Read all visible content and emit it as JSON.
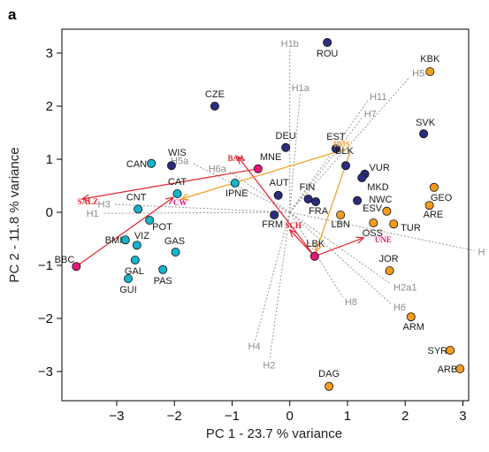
{
  "chart_data": {
    "type": "scatter",
    "panel_letter": "a",
    "title": "",
    "xlabel": "PC 1 -  23.7 % variance",
    "ylabel": "PC 2 - 11.8 % variance",
    "xlim": [
      -3.95,
      3.1
    ],
    "ylim": [
      -3.55,
      3.45
    ],
    "x_ticks": [
      -3,
      -2,
      -1,
      0,
      1,
      2,
      3
    ],
    "y_ticks": [
      -3,
      -2,
      -1,
      0,
      1,
      2,
      3
    ],
    "x_tick_labels": [
      "−3",
      "−2",
      "−1",
      "0",
      "1",
      "2",
      "3"
    ],
    "y_tick_labels": [
      "−3",
      "−2",
      "−1",
      "0",
      "1",
      "2",
      "3"
    ],
    "colors": {
      "navy": "#2b2d7c",
      "cyan": "#17b3c9",
      "orange": "#f39c1f",
      "magenta": "#e8157a",
      "arrow_red": "#e02530",
      "arrow_orange": "#f39c1f",
      "loading_gray": "#999999"
    },
    "groups": [
      {
        "color": "navy",
        "points": [
          {
            "label": "ROU",
            "x": 0.65,
            "y": 3.2
          },
          {
            "label": "CZE",
            "x": -1.3,
            "y": 2.0
          },
          {
            "label": "DEU",
            "x": -0.07,
            "y": 1.22
          },
          {
            "label": "EST",
            "x": 0.8,
            "y": 1.2
          },
          {
            "label": "BLK",
            "x": 0.97,
            "y": 0.88
          },
          {
            "label": "VUR",
            "x": 1.3,
            "y": 0.72
          },
          {
            "label": "MKD",
            "x": 1.25,
            "y": 0.65
          },
          {
            "label": "SVK",
            "x": 2.32,
            "y": 1.48
          },
          {
            "label": "WIS",
            "x": -2.05,
            "y": 0.88
          },
          {
            "label": "AUT",
            "x": -0.2,
            "y": 0.32
          },
          {
            "label": "FIN",
            "x": 0.32,
            "y": 0.25
          },
          {
            "label": "FRA",
            "x": 0.45,
            "y": 0.2
          },
          {
            "label": "ESV",
            "x": 1.17,
            "y": 0.22
          },
          {
            "label": "FRM",
            "x": -0.27,
            "y": -0.05
          }
        ]
      },
      {
        "color": "cyan",
        "points": [
          {
            "label": "CAN",
            "x": -2.4,
            "y": 0.92
          },
          {
            "label": "IPNE",
            "x": -0.95,
            "y": 0.55
          },
          {
            "label": "CAT",
            "x": -1.95,
            "y": 0.35
          },
          {
            "label": "CNT",
            "x": -2.63,
            "y": 0.06
          },
          {
            "label": "POT",
            "x": -2.43,
            "y": -0.15
          },
          {
            "label": "BMI",
            "x": -2.85,
            "y": -0.52
          },
          {
            "label": "VIZ",
            "x": -2.65,
            "y": -0.62
          },
          {
            "label": "GAS",
            "x": -1.98,
            "y": -0.75
          },
          {
            "label": "GAL",
            "x": -2.68,
            "y": -0.9
          },
          {
            "label": "PAS",
            "x": -2.2,
            "y": -1.08
          },
          {
            "label": "GUI",
            "x": -2.8,
            "y": -1.25
          }
        ]
      },
      {
        "color": "orange",
        "points": [
          {
            "label": "KBK",
            "x": 2.43,
            "y": 2.65
          },
          {
            "label": "GEO",
            "x": 2.5,
            "y": 0.47
          },
          {
            "label": "ARE",
            "x": 2.42,
            "y": 0.13
          },
          {
            "label": "NWC",
            "x": 1.68,
            "y": 0.02
          },
          {
            "label": "LBN",
            "x": 0.88,
            "y": -0.05
          },
          {
            "label": "TUR",
            "x": 1.8,
            "y": -0.22
          },
          {
            "label": "OSS",
            "x": 1.45,
            "y": -0.2
          },
          {
            "label": "JOR",
            "x": 1.73,
            "y": -1.1
          },
          {
            "label": "ARM",
            "x": 2.1,
            "y": -1.97
          },
          {
            "label": "SYR",
            "x": 2.78,
            "y": -2.6
          },
          {
            "label": "ARB",
            "x": 2.95,
            "y": -2.95
          },
          {
            "label": "DAG",
            "x": 0.68,
            "y": -3.28
          }
        ]
      },
      {
        "color": "magenta",
        "points": [
          {
            "label": "MNE",
            "x": -0.55,
            "y": 0.82
          },
          {
            "label": "BBC",
            "x": -3.7,
            "y": -1.02
          },
          {
            "label": "LBK",
            "x": 0.43,
            "y": -0.83
          }
        ]
      }
    ],
    "loadings": [
      {
        "label": "H1b",
        "x": 0.0,
        "y": 3.08
      },
      {
        "label": "H1a",
        "x": 0.18,
        "y": 2.25
      },
      {
        "label": "H5",
        "x": 2.08,
        "y": 2.55
      },
      {
        "label": "H11",
        "x": 1.35,
        "y": 2.1
      },
      {
        "label": "H7",
        "x": 1.25,
        "y": 1.78
      },
      {
        "label": "H5a",
        "x": -1.7,
        "y": 0.93
      },
      {
        "label": "H6a",
        "x": -1.05,
        "y": 0.77
      },
      {
        "label": "H3",
        "x": -3.05,
        "y": 0.15
      },
      {
        "label": "H1",
        "x": -3.25,
        "y": -0.02
      },
      {
        "label": "H",
        "x": 3.2,
        "y": -0.72
      },
      {
        "label": "H2a1",
        "x": 1.75,
        "y": -1.35
      },
      {
        "label": "H6",
        "x": 1.75,
        "y": -1.72
      },
      {
        "label": "H8",
        "x": 0.92,
        "y": -1.6
      },
      {
        "label": "H4",
        "x": -0.6,
        "y": -2.42
      },
      {
        "label": "H2",
        "x": -0.35,
        "y": -2.78
      }
    ],
    "reference_points": [
      {
        "label": "SALZ",
        "x": -3.5,
        "y": 0.2,
        "color": "arrow_red"
      },
      {
        "label": "BAA",
        "x": -0.93,
        "y": 1.02,
        "color": "arrow_red"
      },
      {
        "label": "SCH",
        "x": 0.06,
        "y": -0.25,
        "color": "arrow_red"
      },
      {
        "label": "CW",
        "x": -1.9,
        "y": 0.18,
        "color": "magenta"
      },
      {
        "label": "RÖS",
        "x": 0.9,
        "y": 1.28,
        "color": "arrow_orange"
      },
      {
        "label": "UNE",
        "x": 1.62,
        "y": -0.52,
        "color": "magenta"
      }
    ],
    "arrows": [
      {
        "from": [
          -0.55,
          0.82
        ],
        "to": [
          -3.6,
          0.25
        ],
        "color": "arrow_red"
      },
      {
        "from": [
          -3.7,
          -1.02
        ],
        "to": [
          -2.02,
          0.28
        ],
        "color": "arrow_red"
      },
      {
        "from": [
          0.43,
          -0.83
        ],
        "to": [
          -0.9,
          1.05
        ],
        "color": "arrow_red"
      },
      {
        "from": [
          0.43,
          -0.83
        ],
        "to": [
          0.0,
          -0.33
        ],
        "color": "arrow_red"
      },
      {
        "from": [
          0.43,
          -0.83
        ],
        "to": [
          1.28,
          -0.48
        ],
        "color": "arrow_red"
      },
      {
        "from": [
          1.05,
          1.15
        ],
        "to": [
          0.45,
          -0.75
        ],
        "color": "arrow_orange"
      },
      {
        "from": [
          1.0,
          1.2
        ],
        "to": [
          -1.88,
          0.25
        ],
        "color": "arrow_orange"
      }
    ]
  }
}
